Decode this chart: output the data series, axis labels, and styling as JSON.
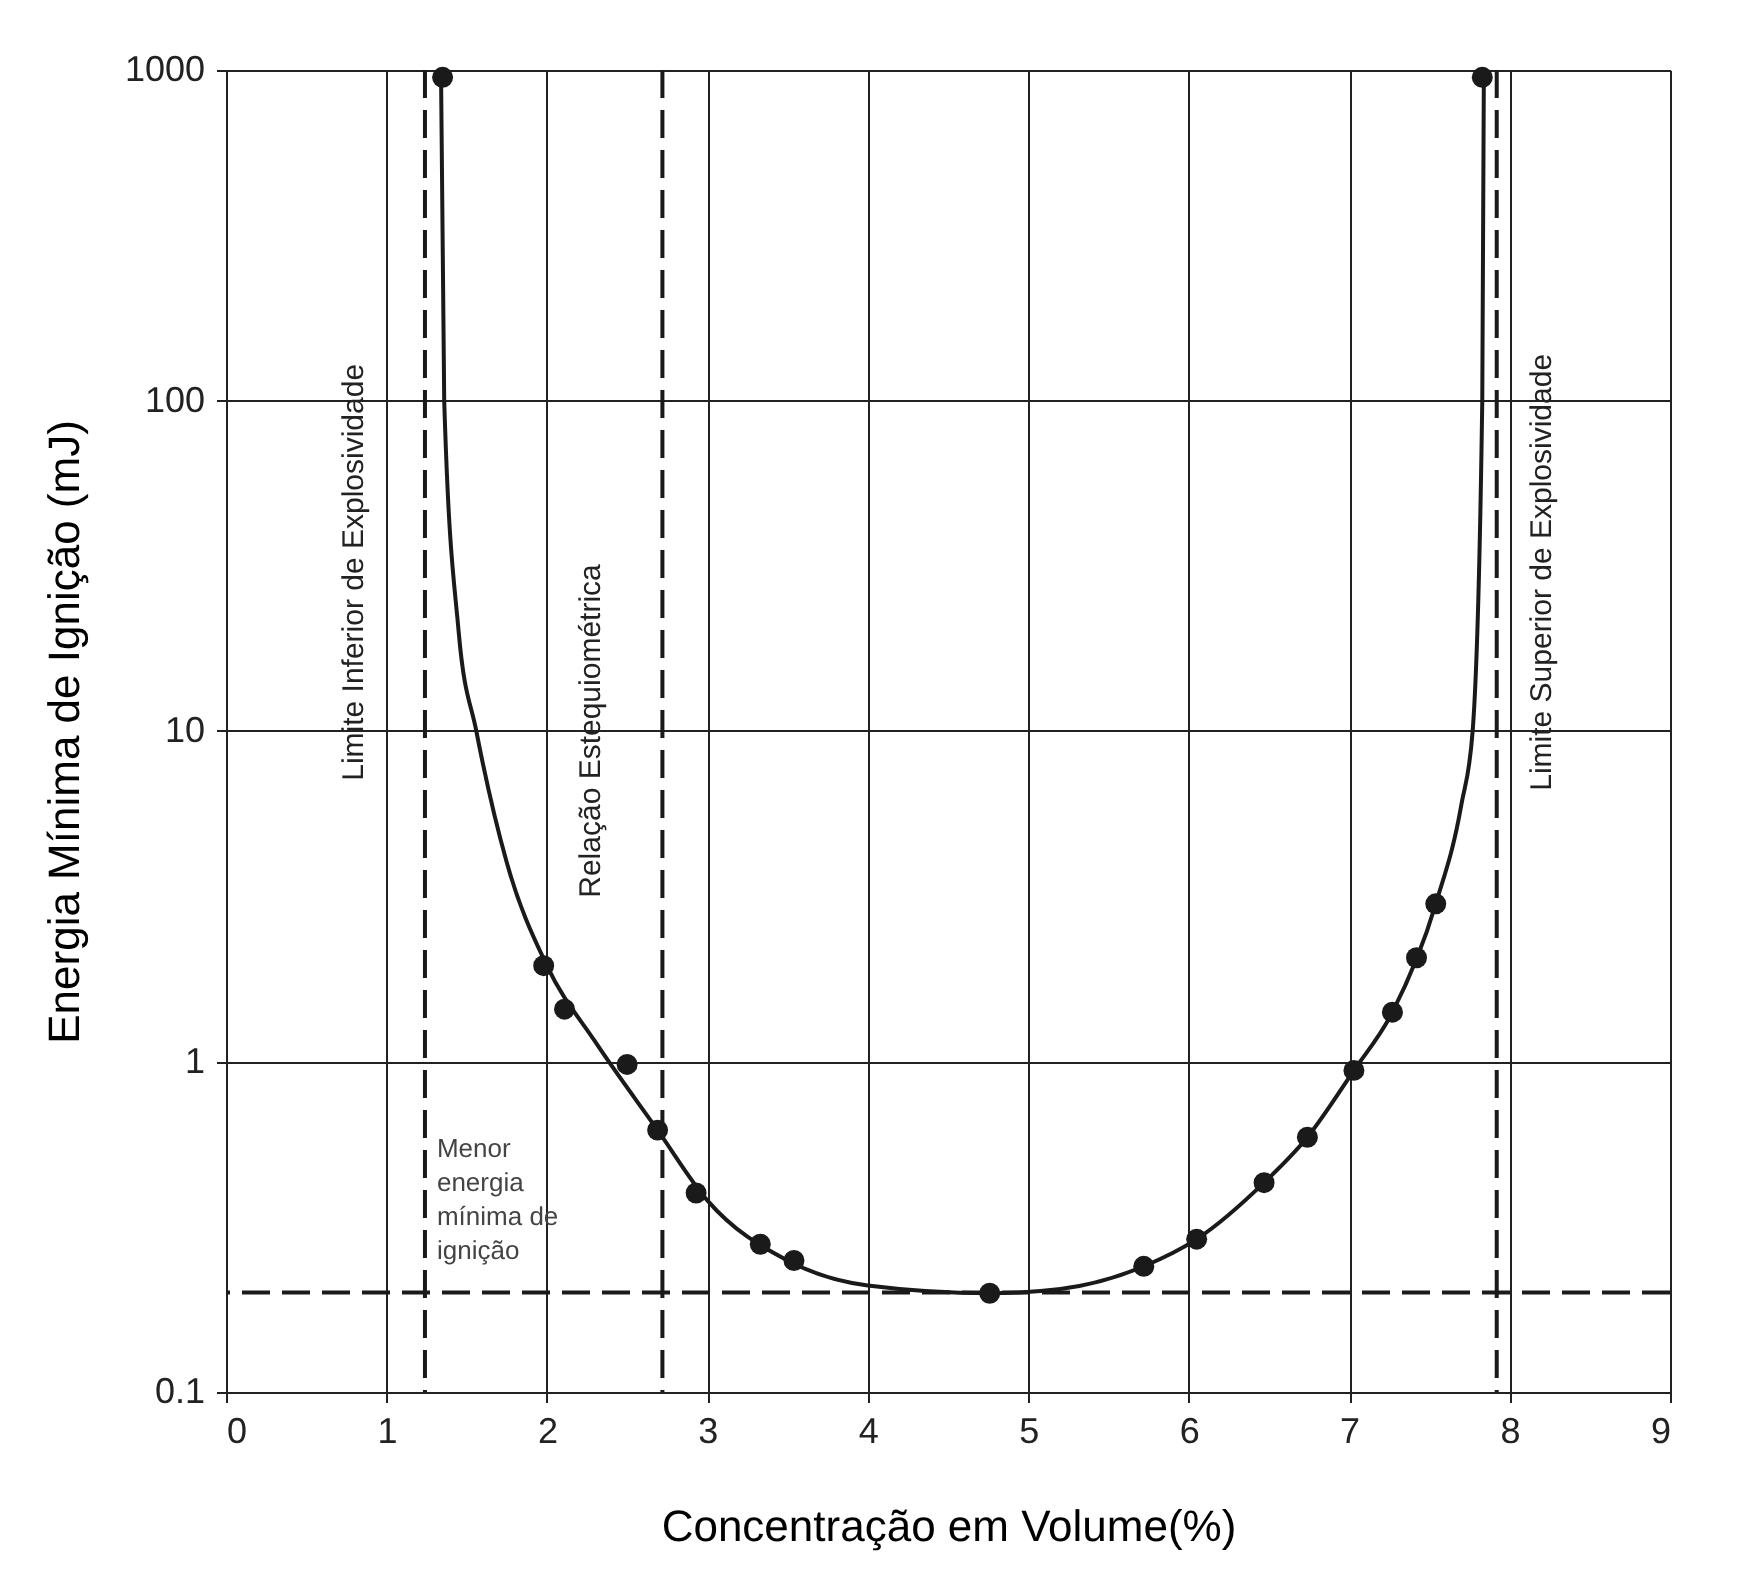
{
  "chart_data": {
    "type": "scatter",
    "xlabel": "Concentração em Volume(%)",
    "ylabel": "Energia Mínima de Ignição (mJ)",
    "xlim": [
      0,
      9
    ],
    "xticks": [
      0,
      1,
      2,
      3,
      4,
      5,
      6,
      7,
      8,
      9
    ],
    "ylim": [
      0.1,
      1000
    ],
    "yticks": [
      0.1,
      1,
      10,
      100,
      1000
    ],
    "log": "y",
    "grid": true,
    "series": [
      {
        "type": "line",
        "color": "#1a1a1a",
        "marker": "none",
        "line_style": "solid",
        "x": [
          1.34,
          1.36,
          1.45,
          1.56,
          1.75,
          2.0,
          2.3,
          2.69,
          3.0,
          3.5,
          4.0,
          4.76,
          5.2,
          5.72,
          6.05,
          6.47,
          6.74,
          7.03,
          7.27,
          7.54,
          7.7,
          7.77,
          7.83,
          7.84
        ],
        "values": [
          1000,
          100,
          20,
          10,
          4,
          1.95,
          1.15,
          0.62,
          0.38,
          0.25,
          0.21,
          0.199,
          0.205,
          0.24,
          0.29,
          0.43,
          0.59,
          0.94,
          1.41,
          3.0,
          6,
          10,
          100,
          1000
        ]
      },
      {
        "color": "#1a1a1a",
        "marker": "circle",
        "x": [
          1.35,
          1.98,
          2.11,
          2.5,
          2.69,
          2.93,
          3.33,
          3.54,
          4.76,
          5.72,
          6.05,
          6.47,
          6.74,
          7.03,
          7.27,
          7.42,
          7.54,
          7.83
        ],
        "values": [
          950,
          1.95,
          1.44,
          0.98,
          0.62,
          0.4,
          0.28,
          0.25,
          0.199,
          0.24,
          0.29,
          0.43,
          0.59,
          0.94,
          1.41,
          2.06,
          3.0,
          950
        ]
      }
    ],
    "ref_lines": [
      {
        "axis": "x",
        "value": 1.24,
        "label": "Limite Inferior de Explosividade",
        "color": "#1a1a1a",
        "line_style": "dashed"
      },
      {
        "axis": "x",
        "value": 2.72,
        "label": "Relação Estequiométrica",
        "color": "#1a1a1a",
        "line_style": "dashed"
      },
      {
        "axis": "x",
        "value": 7.92,
        "label": "Limite Superior de Explosividade",
        "color": "#1a1a1a",
        "line_style": "dashed"
      },
      {
        "axis": "y",
        "value": 0.2,
        "label": "Menor energia mínima de ignição",
        "color": "#1a1a1a",
        "line_style": "dashed"
      }
    ]
  }
}
